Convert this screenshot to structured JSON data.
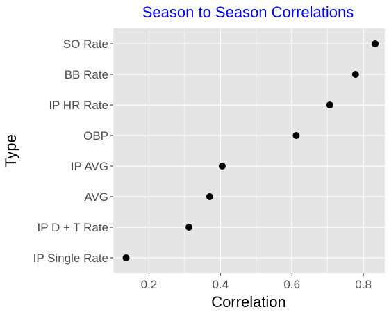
{
  "chart_data": {
    "type": "scatter",
    "title": "Season to Season Correlations",
    "xlabel": "Correlation",
    "ylabel": "Type",
    "xlim": [
      0.1,
      0.86
    ],
    "x_ticks": [
      0.2,
      0.4,
      0.6,
      0.8
    ],
    "x_tick_labels": [
      "0.2",
      "0.4",
      "0.6",
      "0.8"
    ],
    "categories": [
      "SO Rate",
      "BB Rate",
      "IP HR Rate",
      "OBP",
      "IP AVG",
      "AVG",
      "IP D + T Rate",
      "IP Single Rate"
    ],
    "values": [
      0.833,
      0.778,
      0.706,
      0.612,
      0.405,
      0.37,
      0.312,
      0.136
    ],
    "grid": true,
    "legend": "none"
  },
  "colors": {
    "title": "#0000ff",
    "panel_background": "#e5e5e5",
    "grid_major": "#ffffff",
    "point": "#000000",
    "tick_text": "#4d4d4d",
    "axis_title": "#000000"
  }
}
